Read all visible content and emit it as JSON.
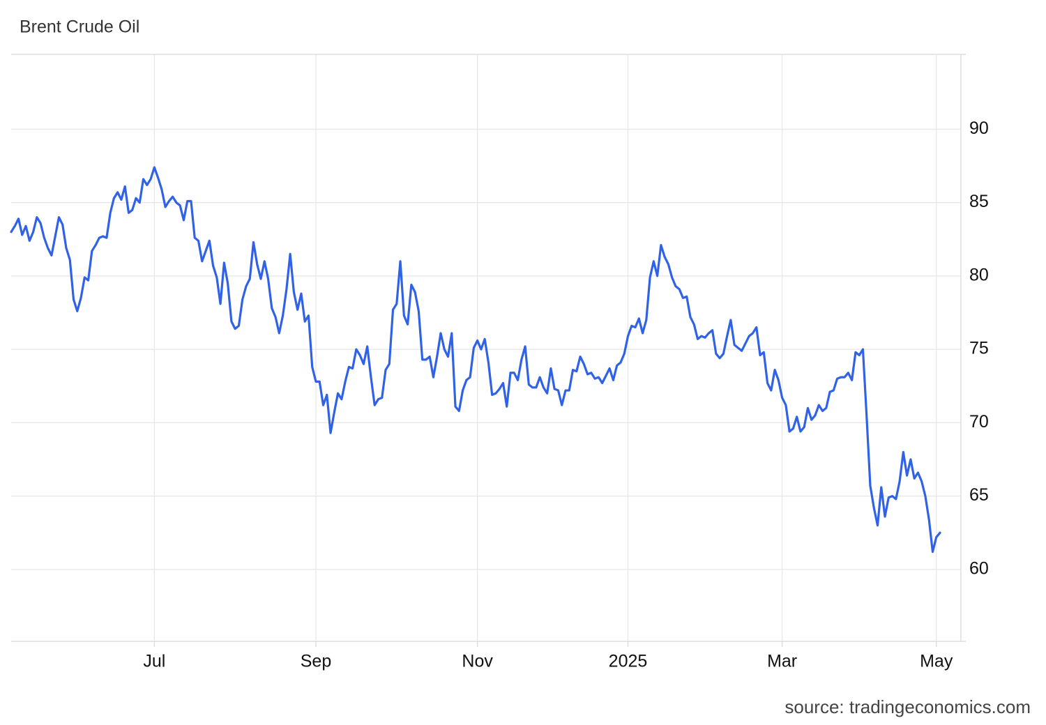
{
  "chart_data": {
    "type": "line",
    "title": "Brent Crude Oil",
    "source": "source: tradingeconomics.com",
    "color": "#2f62e6",
    "grid": true,
    "ylim": [
      55.1,
      95.1
    ],
    "yticks": [
      60,
      65,
      70,
      75,
      80,
      85,
      90
    ],
    "categories": [
      null,
      null,
      null,
      null,
      null,
      null,
      null,
      null,
      null,
      null,
      null,
      null,
      null,
      null,
      null,
      null,
      null,
      null,
      null,
      null,
      null,
      null,
      null,
      null,
      null,
      null,
      null,
      null,
      null,
      null,
      null,
      null,
      null,
      null,
      null,
      null,
      null,
      null,
      null,
      "Jul",
      null,
      null,
      null,
      null,
      null,
      null,
      null,
      null,
      null,
      null,
      null,
      null,
      null,
      null,
      null,
      null,
      null,
      null,
      null,
      null,
      null,
      null,
      null,
      null,
      null,
      null,
      null,
      null,
      null,
      null,
      null,
      null,
      null,
      null,
      null,
      null,
      null,
      null,
      null,
      null,
      null,
      null,
      null,
      "Sep",
      null,
      null,
      null,
      null,
      null,
      null,
      null,
      null,
      null,
      null,
      null,
      null,
      null,
      null,
      null,
      null,
      null,
      null,
      null,
      null,
      null,
      null,
      null,
      null,
      null,
      null,
      null,
      null,
      null,
      null,
      null,
      null,
      null,
      null,
      null,
      null,
      null,
      null,
      null,
      null,
      null,
      null,
      null,
      "Nov",
      null,
      null,
      null,
      null,
      null,
      null,
      null,
      null,
      null,
      null,
      null,
      null,
      null,
      null,
      null,
      null,
      null,
      null,
      null,
      null,
      null,
      null,
      null,
      null,
      null,
      null,
      null,
      null,
      null,
      null,
      null,
      null,
      null,
      null,
      null,
      null,
      null,
      null,
      null,
      null,
      "2025",
      null,
      null,
      null,
      null,
      null,
      null,
      null,
      null,
      null,
      null,
      null,
      null,
      null,
      null,
      null,
      null,
      null,
      null,
      null,
      null,
      null,
      null,
      null,
      null,
      null,
      null,
      null,
      null,
      null,
      null,
      null,
      null,
      null,
      null,
      null,
      null,
      null,
      null,
      null,
      null,
      null,
      "Mar",
      null,
      null,
      null,
      null,
      null,
      null,
      null,
      null,
      null,
      null,
      null,
      null,
      null,
      null,
      null,
      null,
      null,
      null,
      null,
      null,
      null,
      null,
      null,
      null,
      null,
      null,
      null,
      null,
      null,
      null,
      null,
      null,
      null,
      null,
      null,
      null,
      null,
      null,
      null,
      null,
      null,
      "May",
      null
    ],
    "values": [
      83.0,
      83.4,
      83.9,
      82.8,
      83.4,
      82.4,
      83.0,
      84.0,
      83.6,
      82.6,
      81.9,
      81.4,
      82.7,
      84.0,
      83.5,
      81.9,
      81.1,
      78.4,
      77.6,
      78.5,
      79.9,
      79.7,
      81.7,
      82.1,
      82.6,
      82.7,
      82.6,
      84.3,
      85.3,
      85.7,
      85.2,
      86.1,
      84.3,
      84.5,
      85.3,
      85.0,
      86.6,
      86.2,
      86.6,
      87.4,
      86.7,
      85.9,
      84.7,
      85.1,
      85.4,
      85.0,
      84.8,
      83.8,
      85.1,
      85.1,
      82.6,
      82.4,
      81.0,
      81.7,
      82.4,
      80.7,
      79.9,
      78.1,
      80.9,
      79.5,
      76.9,
      76.4,
      76.6,
      78.4,
      79.3,
      79.8,
      82.3,
      80.8,
      79.8,
      81.0,
      79.8,
      77.8,
      77.2,
      76.1,
      77.3,
      79.1,
      81.5,
      78.9,
      77.7,
      78.8,
      76.9,
      77.3,
      73.8,
      72.8,
      72.8,
      71.2,
      71.9,
      69.3,
      70.7,
      72.0,
      71.6,
      72.8,
      73.8,
      73.7,
      75.0,
      74.6,
      74.0,
      75.2,
      73.1,
      71.2,
      71.6,
      71.7,
      73.6,
      74.0,
      77.7,
      78.1,
      81.0,
      77.3,
      76.7,
      79.4,
      78.9,
      77.6,
      74.3,
      74.3,
      74.5,
      73.1,
      74.5,
      76.1,
      75.0,
      74.5,
      76.1,
      71.1,
      70.8,
      72.2,
      72.9,
      73.1,
      75.1,
      75.6,
      75.0,
      75.7,
      74.1,
      71.9,
      72.0,
      72.3,
      72.7,
      71.1,
      73.4,
      73.4,
      72.9,
      74.3,
      75.2,
      72.6,
      72.4,
      72.4,
      73.1,
      72.4,
      72.0,
      73.7,
      72.3,
      72.2,
      71.2,
      72.2,
      72.2,
      73.6,
      73.5,
      74.5,
      74.0,
      73.3,
      73.4,
      73.0,
      73.1,
      72.7,
      73.2,
      73.7,
      72.9,
      73.9,
      74.1,
      74.7,
      75.9,
      76.6,
      76.5,
      77.1,
      76.1,
      77.0,
      79.9,
      81.0,
      80.0,
      82.1,
      81.3,
      80.8,
      79.9,
      79.3,
      79.1,
      78.5,
      78.6,
      77.2,
      76.7,
      75.7,
      75.9,
      75.8,
      76.1,
      76.3,
      74.7,
      74.4,
      74.7,
      75.9,
      77.0,
      75.3,
      75.1,
      74.9,
      75.4,
      75.9,
      76.1,
      76.5,
      74.6,
      74.8,
      72.7,
      72.2,
      73.6,
      72.9,
      71.7,
      71.2,
      69.4,
      69.6,
      70.4,
      69.4,
      69.7,
      71.0,
      70.2,
      70.5,
      71.2,
      70.8,
      71.0,
      72.1,
      72.2,
      73.0,
      73.1,
      73.1,
      73.4,
      72.9,
      74.8,
      74.6,
      75.0,
      70.5,
      65.7,
      64.2,
      63.0,
      65.6,
      63.6,
      64.9,
      65.0,
      64.8,
      66.0,
      68.0,
      66.4,
      67.5,
      66.2,
      66.6,
      66.0,
      65.0,
      63.4,
      61.2,
      62.2,
      62.5
    ]
  }
}
